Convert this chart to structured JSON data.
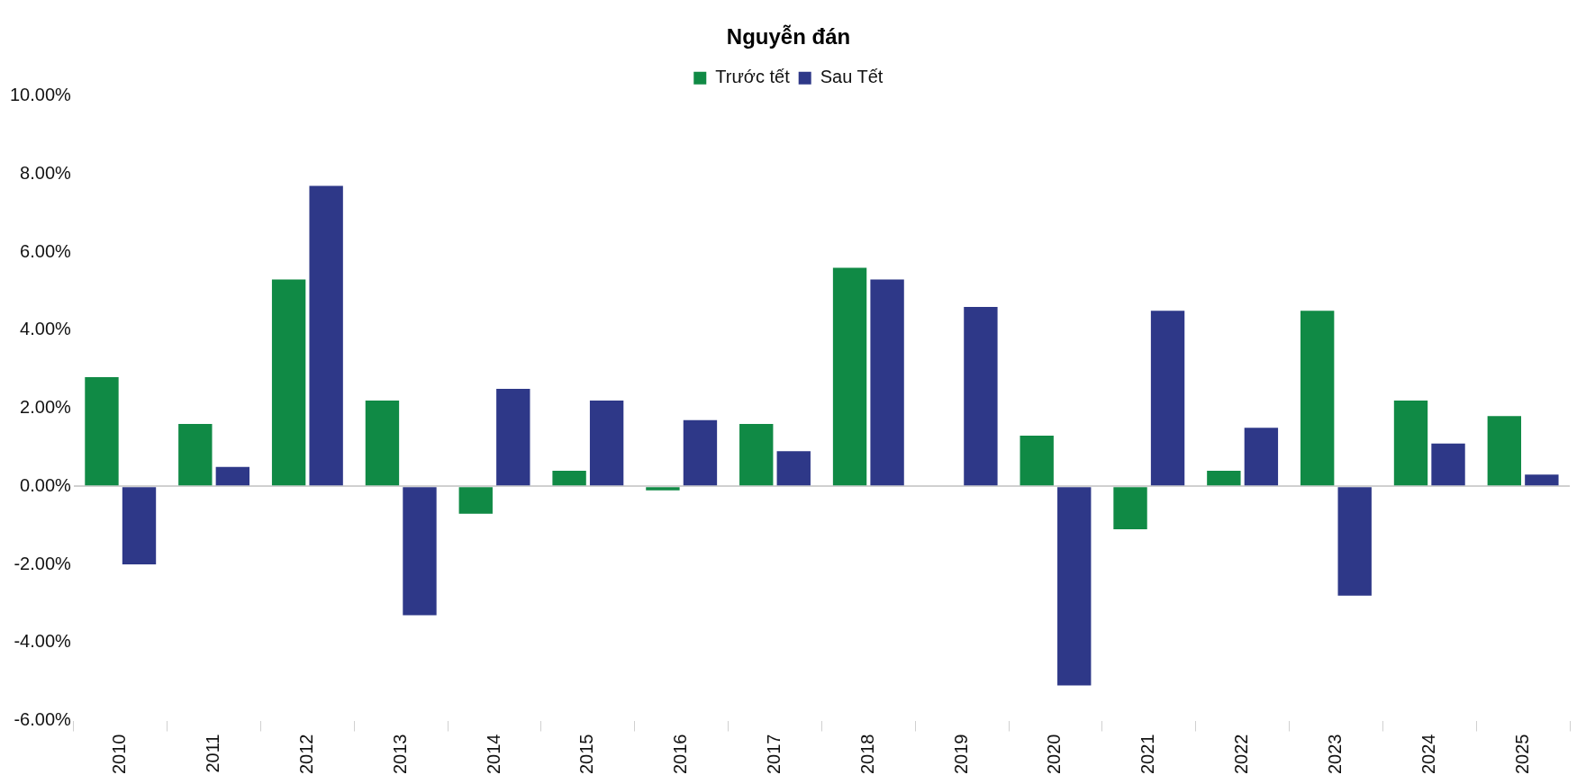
{
  "chart_data": {
    "type": "bar",
    "title": "Nguyễn đán",
    "categories": [
      "2010",
      "2011",
      "2012",
      "2013",
      "2014",
      "2015",
      "2016",
      "2017",
      "2018",
      "2019",
      "2020",
      "2021",
      "2022",
      "2023",
      "2024",
      "2025"
    ],
    "series": [
      {
        "name": "Trước tết",
        "color": "#108a45",
        "values": [
          2.8,
          1.6,
          5.3,
          2.2,
          -0.7,
          0.4,
          -0.1,
          1.6,
          5.6,
          0,
          1.3,
          -1.1,
          0.4,
          4.5,
          2.2,
          1.8
        ]
      },
      {
        "name": "Sau Tết",
        "color": "#2e3888",
        "values": [
          -2.0,
          0.5,
          7.7,
          -3.3,
          2.5,
          2.2,
          1.7,
          0.9,
          5.3,
          4.6,
          -5.1,
          4.5,
          1.5,
          -2.8,
          1.1,
          0.3
        ]
      }
    ],
    "ylim": [
      -6,
      10
    ],
    "yticks": [
      {
        "value": -6,
        "label": "-6.00%"
      },
      {
        "value": -4,
        "label": "-4.00%"
      },
      {
        "value": -2,
        "label": "-2.00%"
      },
      {
        "value": 0,
        "label": "0.00%"
      },
      {
        "value": 2,
        "label": "2.00%"
      },
      {
        "value": 4,
        "label": "4.00%"
      },
      {
        "value": 6,
        "label": "6.00%"
      },
      {
        "value": 8,
        "label": "8.00%"
      },
      {
        "value": 10,
        "label": "10.00%"
      }
    ],
    "legend": "top"
  }
}
